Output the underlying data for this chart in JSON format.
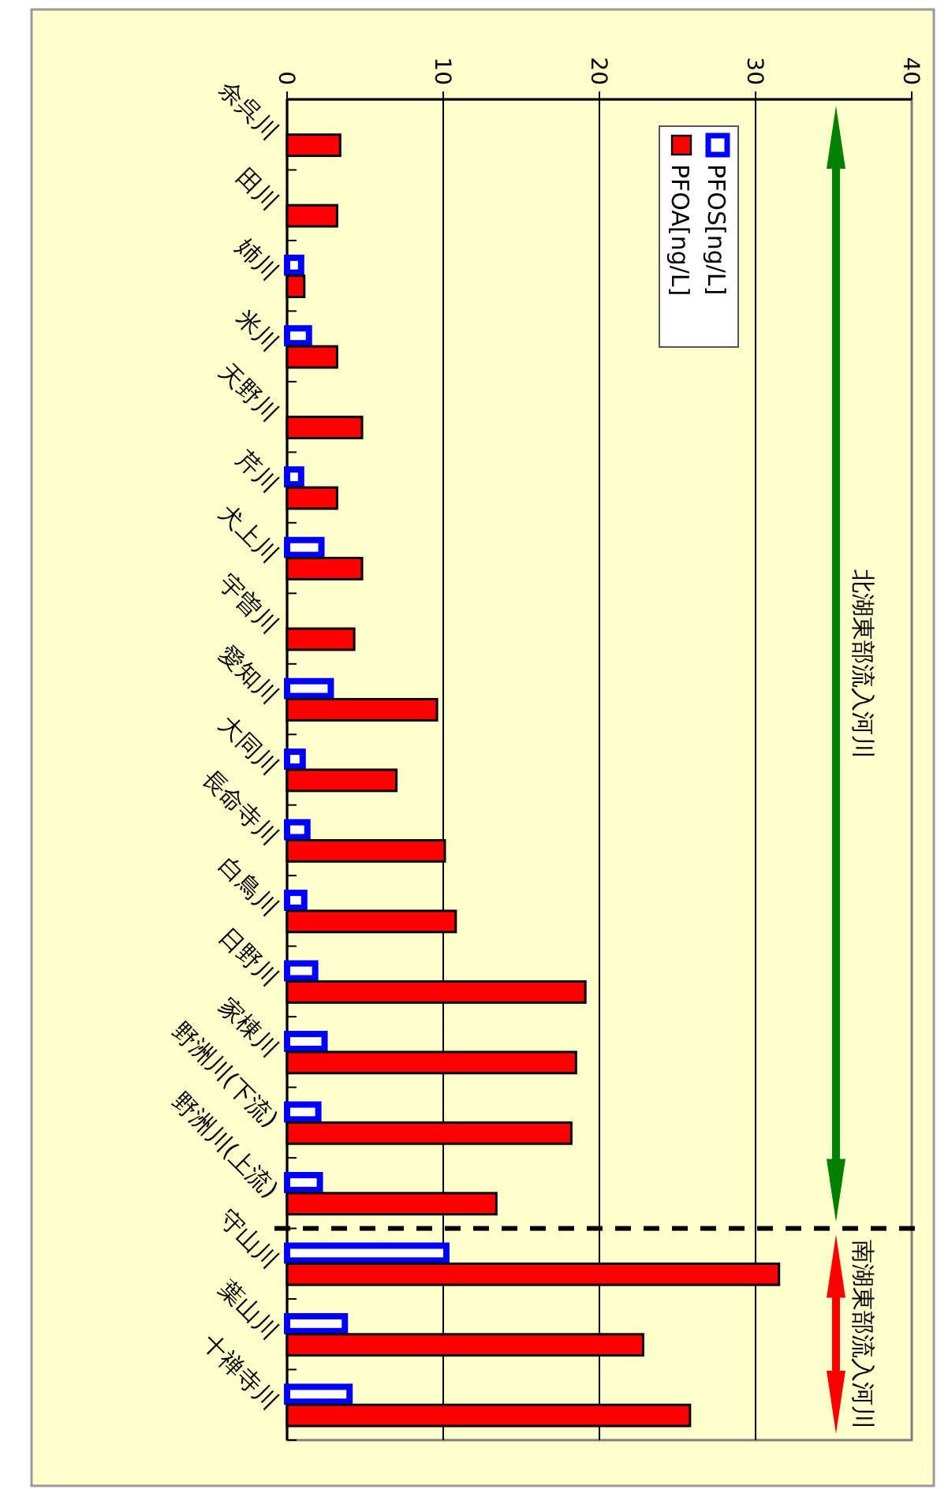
{
  "chart_data": {
    "type": "bar",
    "categories": [
      "余呉川",
      "田川",
      "姉川",
      "米川",
      "天野川",
      "芹川",
      "犬上川",
      "宇曽川",
      "愛知川",
      "大同川",
      "長命寺川",
      "白鳥川",
      "日野川",
      "家棟川",
      "野洲川(下流)",
      "野洲川(上流)",
      "守山川",
      "葉山川",
      "十禅寺川"
    ],
    "series": [
      {
        "name": "PFOS[ng/L]",
        "color": "#0000ff",
        "values": [
          null,
          null,
          0.9,
          1.4,
          null,
          0.9,
          2.2,
          null,
          2.8,
          1.0,
          1.3,
          1.1,
          1.8,
          2.4,
          2.0,
          2.1,
          10.2,
          3.7,
          4.0
        ]
      },
      {
        "name": "PFOA[ng/L]",
        "color": "#ff0000",
        "values": [
          3.4,
          3.2,
          1.1,
          3.2,
          4.8,
          3.2,
          4.8,
          4.3,
          9.6,
          7.0,
          10.1,
          10.8,
          19.1,
          18.5,
          18.2,
          13.4,
          31.5,
          22.8,
          25.8
        ]
      }
    ],
    "orientation": "horizontal",
    "xlim": [
      0,
      40
    ],
    "xticks": [
      0,
      10,
      20,
      30,
      40
    ],
    "grid": "x",
    "legend": "top right",
    "annotations": [
      "北湖東部流入河川",
      "南湖東部流入河川"
    ]
  }
}
